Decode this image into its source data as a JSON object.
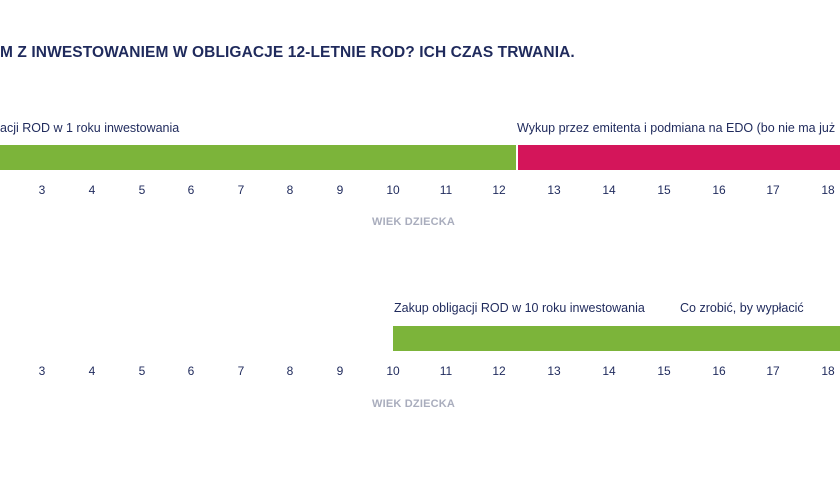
{
  "title": "M Z INWESTOWANIEM W OBLIGACJE 12-LETNIE ROD? ICH CZAS TRWANIA.",
  "colors": {
    "text": "#1f2a5c",
    "green": "#7cb43a",
    "red": "#d4155a",
    "muted": "#a9adbd"
  },
  "timelines": [
    {
      "axis_caption": "WIEK DZIECKA",
      "ticks": [
        "3",
        "4",
        "5",
        "6",
        "7",
        "8",
        "9",
        "10",
        "11",
        "12",
        "13",
        "14",
        "15",
        "16",
        "17",
        "18"
      ],
      "segments": [
        {
          "label": "acji ROD w 1 roku inwestowania",
          "color": "green",
          "from_age": 1.5,
          "to_age": 12.3
        },
        {
          "label": "Wykup przez emitenta i podmiana na EDO (bo nie ma już",
          "color": "red",
          "from_age": 12.3,
          "to_age": 19
        }
      ]
    },
    {
      "axis_caption": "WIEK DZIECKA",
      "ticks": [
        "3",
        "4",
        "5",
        "6",
        "7",
        "8",
        "9",
        "10",
        "11",
        "12",
        "13",
        "14",
        "15",
        "16",
        "17",
        "18"
      ],
      "segments": [
        {
          "label": "Zakup obligacji ROD w 10 roku inwestowania",
          "color": "green",
          "from_age": 10,
          "to_age": 19
        }
      ],
      "extra_labels": [
        "Co zrobić, by wypłacić"
      ]
    }
  ]
}
